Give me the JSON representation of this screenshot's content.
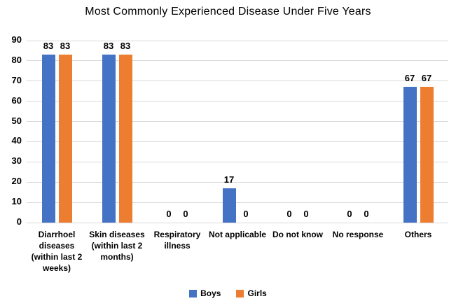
{
  "chart": {
    "title": "Most Commonly Experienced Disease Under Five Years"
  },
  "chart_data": {
    "type": "bar",
    "title": "Most Commonly Experienced Disease Under Five Years",
    "categories": [
      "Diarrhoel\ndiseases\n(within last 2\nweeks)",
      "Skin diseases\n(within last 2\nmonths)",
      "Respiratory\nillness",
      "Not applicable",
      "Do not know",
      "No response",
      "Others"
    ],
    "series": [
      {
        "name": "Boys",
        "color": "#4472C4",
        "values": [
          83,
          83,
          0,
          17,
          0,
          0,
          67
        ]
      },
      {
        "name": "Girls",
        "color": "#ED7D31",
        "values": [
          83,
          83,
          0,
          0,
          0,
          0,
          67
        ]
      }
    ],
    "xlabel": "",
    "ylabel": "",
    "ylim": [
      0,
      90
    ],
    "yticks": [
      0,
      10,
      20,
      30,
      40,
      50,
      60,
      70,
      80,
      90
    ],
    "grid": "horizontal",
    "gridline_color": "#D9D9D9",
    "text_color": "#000000",
    "legend_position": "bottom",
    "data_labels": true
  }
}
